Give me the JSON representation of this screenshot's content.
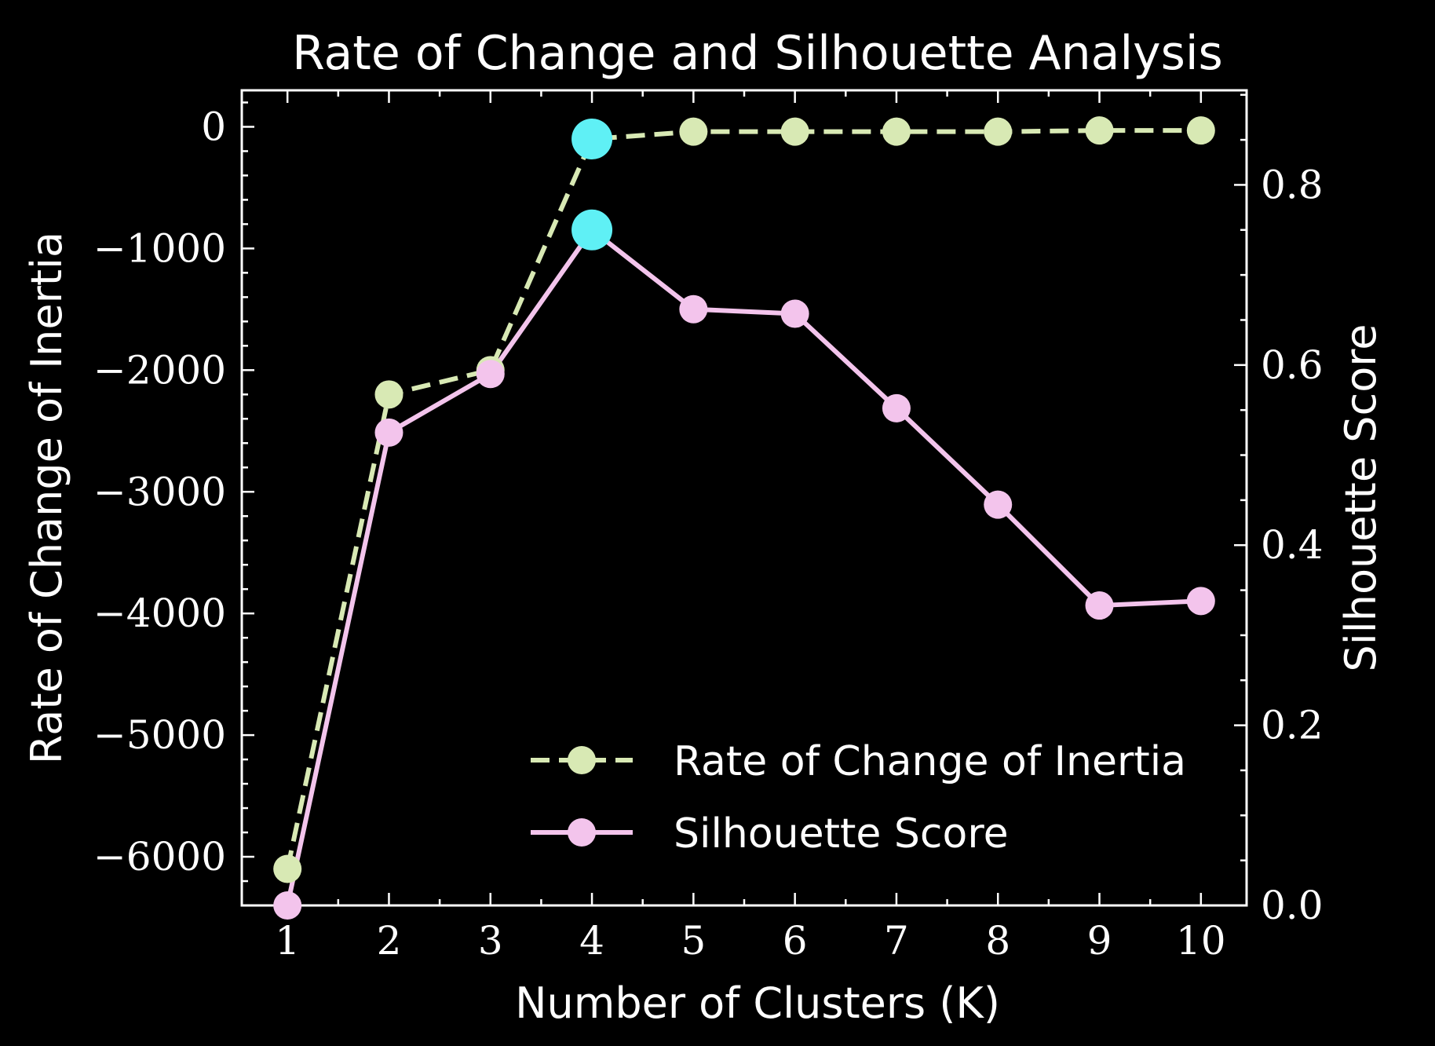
{
  "chart_data": {
    "type": "line",
    "title": "Rate of Change and Silhouette Analysis",
    "xlabel": "Number of Clusters (K)",
    "ylabel_left": "Rate of Change of Inertia",
    "ylabel_right": "Silhouette Score",
    "x": [
      1,
      2,
      3,
      4,
      5,
      6,
      7,
      8,
      9,
      10
    ],
    "xlim": [
      0.55,
      10.45
    ],
    "x_ticks": [
      1,
      2,
      3,
      4,
      5,
      6,
      7,
      8,
      9,
      10
    ],
    "x_tick_labels": [
      "1",
      "2",
      "3",
      "4",
      "5",
      "6",
      "7",
      "8",
      "9",
      "10"
    ],
    "ylim_left": [
      -6400,
      300
    ],
    "y_ticks_left": [
      0,
      -1000,
      -2000,
      -3000,
      -4000,
      -5000,
      -6000
    ],
    "y_tick_labels_left": [
      "0",
      "−1000",
      "−2000",
      "−3000",
      "−4000",
      "−5000",
      "−6000"
    ],
    "ylim_right": [
      0.0,
      0.905
    ],
    "y_ticks_right": [
      0.0,
      0.2,
      0.4,
      0.6,
      0.8
    ],
    "y_tick_labels_right": [
      "0.0",
      "0.2",
      "0.4",
      "0.6",
      "0.8"
    ],
    "series": [
      {
        "name": "Rate of Change of Inertia",
        "axis": "left",
        "style": "dashed",
        "color": "#d8e9b4",
        "values": [
          -6100,
          -2200,
          -2000,
          -100,
          -40,
          -40,
          -40,
          -40,
          -30,
          -30
        ]
      },
      {
        "name": "Silhouette Score",
        "axis": "right",
        "style": "solid",
        "color": "#f3c4ec",
        "values": [
          0.0,
          0.525,
          0.59,
          0.75,
          0.662,
          0.657,
          0.552,
          0.445,
          0.333,
          0.338
        ]
      }
    ],
    "highlight": {
      "x": 4,
      "color": "#5ff0f5"
    },
    "legend": {
      "placement": "lower-right",
      "entries": [
        "Rate of Change of Inertia",
        "Silhouette Score"
      ]
    }
  }
}
